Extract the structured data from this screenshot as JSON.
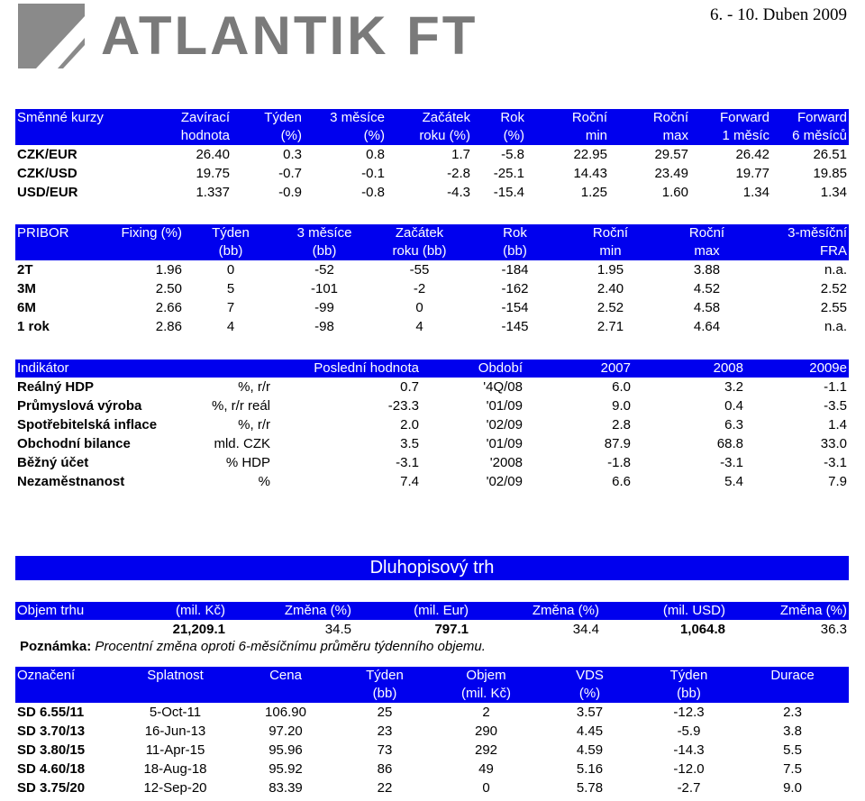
{
  "header": {
    "logo_text": "ATLANTIK FT",
    "date": "6. - 10. Duben 2009"
  },
  "fx": {
    "headers": [
      [
        "Směnné kurzy",
        ""
      ],
      [
        "Zavírací",
        "hodnota"
      ],
      [
        "Týden",
        "(%)"
      ],
      [
        "3 měsíce",
        "(%)"
      ],
      [
        "Začátek",
        "roku (%)"
      ],
      [
        "Rok",
        "(%)"
      ],
      [
        "Roční",
        "min"
      ],
      [
        "Roční",
        "max"
      ],
      [
        "Forward",
        "1 měsíc"
      ],
      [
        "Forward",
        "6 měsíců"
      ]
    ],
    "rows": [
      [
        "CZK/EUR",
        "26.40",
        "0.3",
        "0.8",
        "1.7",
        "-5.8",
        "22.95",
        "29.57",
        "26.42",
        "26.51"
      ],
      [
        "CZK/USD",
        "19.75",
        "-0.7",
        "-0.1",
        "-2.8",
        "-25.1",
        "14.43",
        "23.49",
        "19.77",
        "19.85"
      ],
      [
        "USD/EUR",
        "1.337",
        "-0.9",
        "-0.8",
        "-4.3",
        "-15.4",
        "1.25",
        "1.60",
        "1.34",
        "1.34"
      ]
    ]
  },
  "pribor": {
    "headers": [
      [
        "PRIBOR",
        ""
      ],
      [
        "Fixing (%)",
        ""
      ],
      [
        "Týden",
        "(bb)"
      ],
      [
        "3 měsíce",
        "(bb)"
      ],
      [
        "Začátek",
        "roku (bb)"
      ],
      [
        "Rok",
        "(bb)"
      ],
      [
        "Roční",
        "min"
      ],
      [
        "Roční",
        "max"
      ],
      [
        "3-měsíční",
        "FRA"
      ]
    ],
    "rows": [
      [
        "2T",
        "1.96",
        "0",
        "-52",
        "-55",
        "-184",
        "1.95",
        "3.88",
        "n.a."
      ],
      [
        "3M",
        "2.50",
        "5",
        "-101",
        "-2",
        "-162",
        "2.40",
        "4.52",
        "2.52"
      ],
      [
        "6M",
        "2.66",
        "7",
        "-99",
        "0",
        "-154",
        "2.52",
        "4.58",
        "2.55"
      ],
      [
        "1 rok",
        "2.86",
        "4",
        "-98",
        "4",
        "-145",
        "2.71",
        "4.64",
        "n.a."
      ]
    ]
  },
  "indicators": {
    "headers": [
      "Indikátor",
      "",
      "Poslední hodnota",
      "Období",
      "2007",
      "2008",
      "2009e"
    ],
    "rows": [
      [
        "Reálný HDP",
        "%, r/r",
        "0.7",
        "'4Q/08",
        "6.0",
        "3.2",
        "-1.1"
      ],
      [
        "Průmyslová výroba",
        "%, r/r reál",
        "-23.3",
        "'01/09",
        "9.0",
        "0.4",
        "-3.5"
      ],
      [
        "Spotřebitelská inflace",
        "%, r/r",
        "2.0",
        "'02/09",
        "2.8",
        "6.3",
        "1.4"
      ],
      [
        "Obchodní bilance",
        "mld. CZK",
        "3.5",
        "'01/09",
        "87.9",
        "68.8",
        "33.0"
      ],
      [
        "Běžný účet",
        "% HDP",
        "-3.1",
        "'2008",
        "-1.8",
        "-3.1",
        "-3.1"
      ],
      [
        "Nezaměstnanost",
        "%",
        "7.4",
        "'02/09",
        "6.6",
        "5.4",
        "7.9"
      ]
    ]
  },
  "bond_banner": "Dluhopisový trh",
  "volume": {
    "headers": [
      "Objem trhu",
      "(mil. Kč)",
      "Změna (%)",
      "(mil. Eur)",
      "Změna (%)",
      "(mil. USD)",
      "Změna (%)"
    ],
    "row": [
      "",
      "21,209.1",
      "34.5",
      "797.1",
      "34.4",
      "1,064.8",
      "36.3"
    ],
    "note_label": "Poznámka:",
    "note_text": " Procentní změna oproti 6-měsíčnímu průměru týdenního objemu."
  },
  "bonds": {
    "headers": [
      [
        "Označení",
        ""
      ],
      [
        "Splatnost",
        ""
      ],
      [
        "Cena",
        ""
      ],
      [
        "Týden",
        "(bb)"
      ],
      [
        "Objem",
        "(mil. Kč)"
      ],
      [
        "VDS",
        "(%)"
      ],
      [
        "Týden",
        "(bb)"
      ],
      [
        "Durace",
        ""
      ]
    ],
    "rows": [
      [
        "SD  6.55/11",
        "5-Oct-11",
        "106.90",
        "25",
        "2",
        "3.57",
        "-12.3",
        "2.3"
      ],
      [
        "SD  3.70/13",
        "16-Jun-13",
        "97.20",
        "23",
        "290",
        "4.45",
        "-5.9",
        "3.8"
      ],
      [
        "SD  3.80/15",
        "11-Apr-15",
        "95.96",
        "73",
        "292",
        "4.59",
        "-14.3",
        "5.5"
      ],
      [
        "SD  4.60/18",
        "18-Aug-18",
        "95.92",
        "86",
        "49",
        "5.16",
        "-12.0",
        "7.5"
      ],
      [
        "SD  3.75/20",
        "12-Sep-20",
        "83.39",
        "22",
        "0",
        "5.78",
        "-2.7",
        "9.0"
      ]
    ]
  },
  "colors": {
    "header_blue": "#0000ee",
    "logo_gray": "#7a7a7a"
  }
}
